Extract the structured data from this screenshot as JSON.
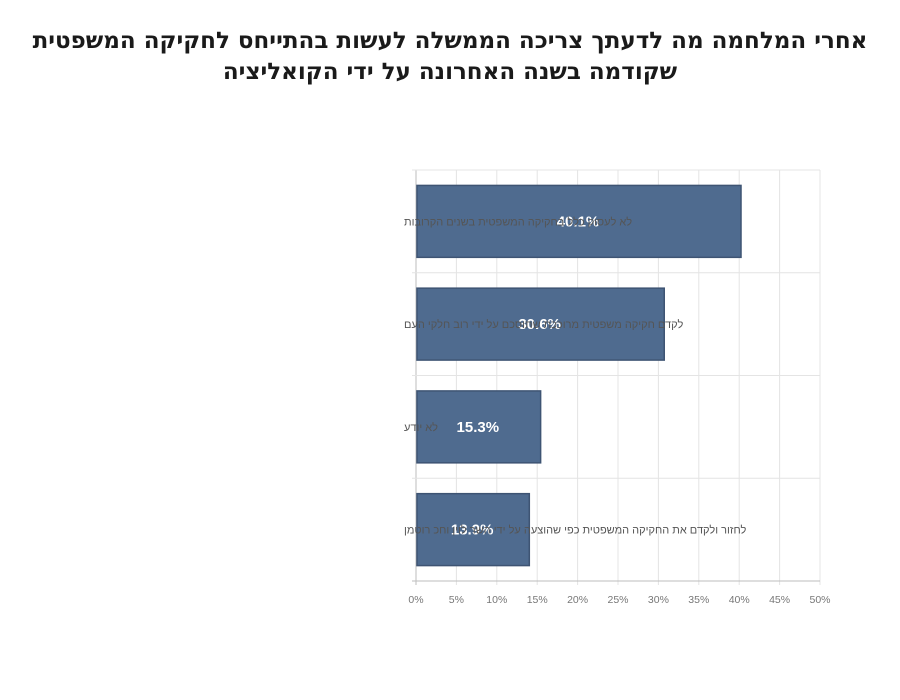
{
  "title_lines": [
    "אחרי המלחמה מה לדעתך צריכה הממשלה לעשות בהתייחס לחקיקה המשפטית",
    "שקודמה בשנה האחרונה על ידי הקואליציה"
  ],
  "chart_data": {
    "type": "bar",
    "orientation": "horizontal",
    "title": "אחרי המלחמה מה לדעתך צריכה הממשלה לעשות בהתייחס לחקיקה המשפטית שקודמה בשנה האחרונה על ידי הקואליציה",
    "categories": [
      "לא לעסוק כלל בחקיקה המשפטית בשנים הקרובות",
      "לקדם חקיקה משפטית מרוככת שתוסכם על ידי רוב חלקי העם",
      "לא יודע",
      "לחזור ולקדם את החקיקה המשפטית כפי שהוצעה על ידי השר לוין וחכ רוטמן"
    ],
    "values": [
      40.1,
      30.6,
      15.3,
      13.9
    ],
    "value_labels": [
      "40.1%",
      "30.6%",
      "15.3%",
      "13.9%"
    ],
    "xlim": [
      0,
      50
    ],
    "x_ticks": [
      "0%",
      "5%",
      "10%",
      "15%",
      "20%",
      "25%",
      "30%",
      "35%",
      "40%",
      "45%",
      "50%"
    ],
    "grid": true,
    "legend": "none",
    "bar_color": "#4f6b8f",
    "bar_edge_color": "#3e5473"
  }
}
